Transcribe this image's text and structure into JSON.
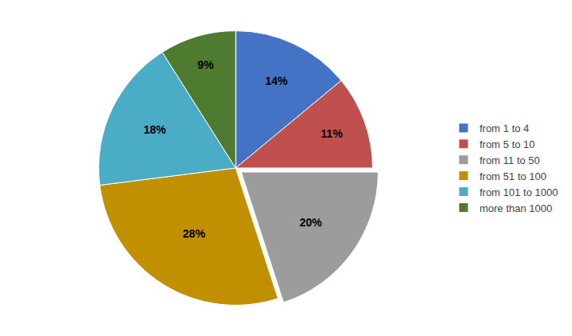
{
  "chart_data": {
    "type": "pie",
    "categories": [
      "from 1 to 4",
      "from 5 to 10",
      "from 11 to 50",
      "from 51 to 100",
      "from 101 to 1000",
      "more than 1000"
    ],
    "values": [
      14,
      11,
      20,
      28,
      18,
      9
    ],
    "value_labels": [
      "14%",
      "11%",
      "20%",
      "28%",
      "18%",
      "9%"
    ],
    "colors": [
      "#4472C4",
      "#C0504D",
      "#9C9C9C",
      "#C09000",
      "#4BACC6",
      "#4E7B2F"
    ],
    "legend": "right",
    "data_labels": true
  }
}
